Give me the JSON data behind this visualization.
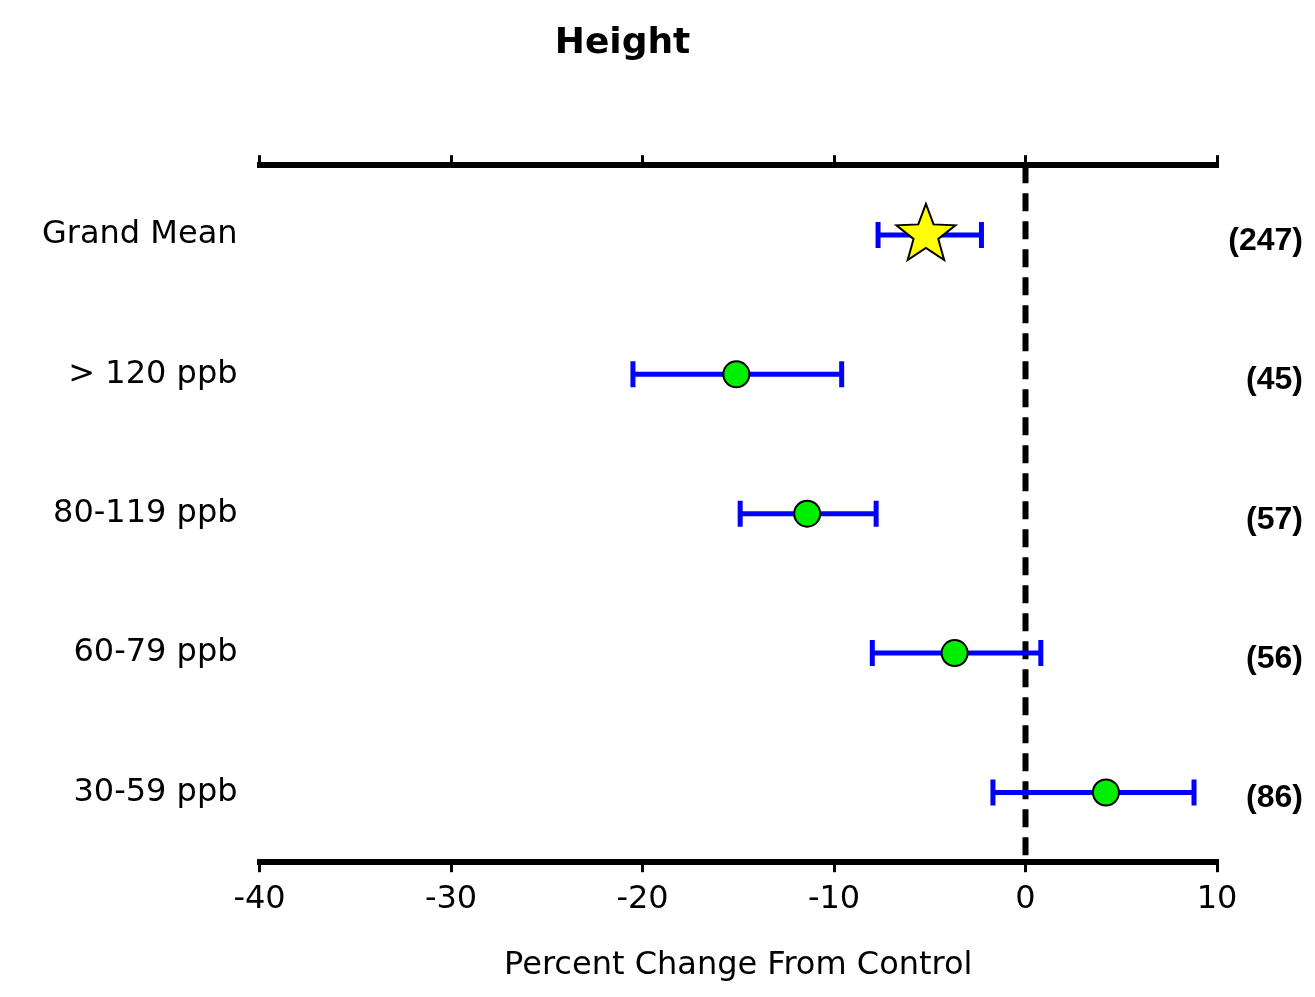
{
  "chart_data": {
    "type": "scatter",
    "title": "Height",
    "xlabel": "Percent Change From Control",
    "categories": [
      "Grand Mean",
      "> 120 ppb",
      "80-119 ppb",
      "60-79 ppb",
      "30-59 ppb"
    ],
    "series": [
      {
        "color": "#ffff00",
        "marker": "star",
        "values": [
          -5.2,
          null,
          null,
          null,
          null
        ],
        "errors": [
          [
            -7.7,
            -2.3
          ],
          null,
          null,
          null,
          null
        ]
      },
      {
        "color": "#00ee00",
        "marker": "circle",
        "values": [
          null,
          -15.1,
          -11.4,
          -3.7,
          4.2
        ],
        "errors": [
          null,
          [
            -20.5,
            -9.6
          ],
          [
            -14.9,
            -7.8
          ],
          [
            -8.0,
            0.8
          ],
          [
            -1.7,
            8.8
          ]
        ]
      }
    ],
    "orientation": "horizontal",
    "xlim": [
      -40,
      10
    ],
    "xticks": [
      -40,
      -30,
      -20,
      -10,
      0,
      10
    ],
    "grid": false,
    "legend": false,
    "ref_lines": [
      {
        "axis": "x",
        "value": 0,
        "color": "#000000",
        "line_style": "dashed"
      }
    ],
    "annotations": [
      "(247)",
      "(45)",
      "(57)",
      "(56)",
      "(86)"
    ]
  }
}
